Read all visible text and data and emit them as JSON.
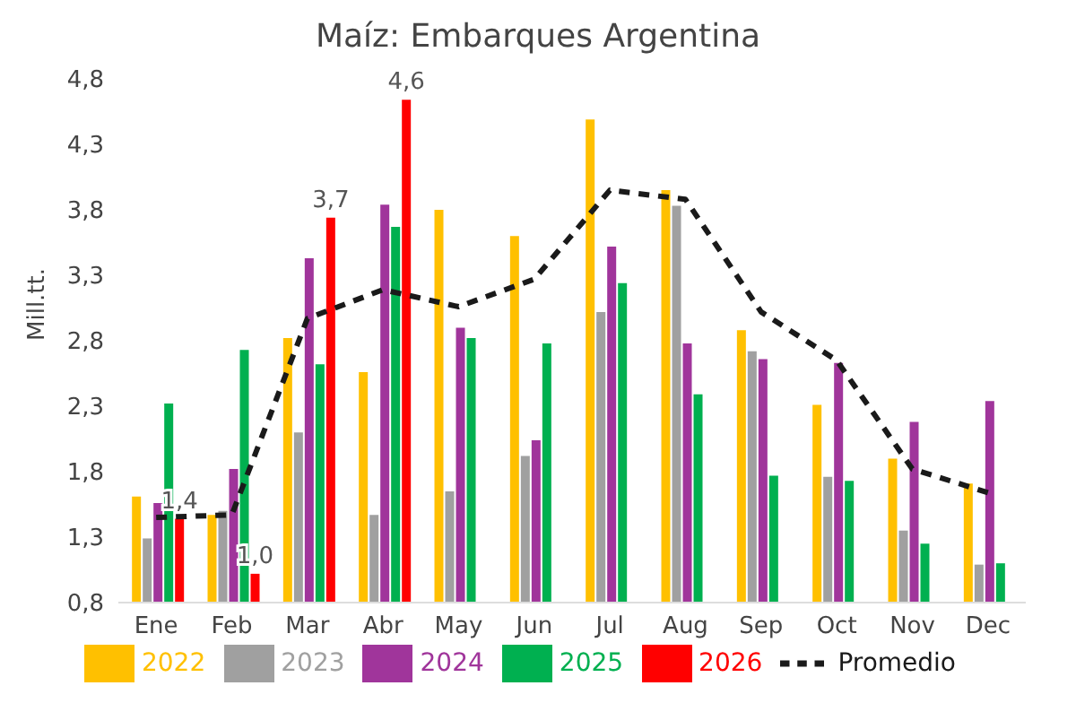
{
  "chart_data": {
    "type": "bar",
    "title": "Maíz: Embarques Argentina",
    "ylabel": "Mill.tt.",
    "categories": [
      "Ene",
      "Feb",
      "Mar",
      "Abr",
      "May",
      "Jun",
      "Jul",
      "Aug",
      "Sep",
      "Oct",
      "Nov",
      "Dec"
    ],
    "series": [
      {
        "name": "2022",
        "color": "#ffc000",
        "values": [
          1.61,
          1.47,
          2.82,
          2.56,
          3.8,
          3.6,
          4.49,
          3.95,
          2.88,
          2.31,
          1.9,
          1.71
        ]
      },
      {
        "name": "2023",
        "color": "#a0a0a0",
        "values": [
          1.29,
          1.5,
          2.1,
          1.47,
          1.65,
          1.92,
          3.02,
          3.83,
          2.72,
          1.76,
          1.35,
          1.09
        ]
      },
      {
        "name": "2024",
        "color": "#a0359b",
        "values": [
          1.56,
          1.82,
          3.43,
          3.84,
          2.9,
          2.04,
          3.52,
          2.78,
          2.66,
          2.63,
          2.18,
          2.34
        ]
      },
      {
        "name": "2025",
        "color": "#00b050",
        "values": [
          2.32,
          2.73,
          2.62,
          3.67,
          2.82,
          2.78,
          3.24,
          2.39,
          1.77,
          1.73,
          1.25,
          1.1
        ]
      },
      {
        "name": "2026",
        "color": "#ff0000",
        "values": [
          1.44,
          1.02,
          3.74,
          4.64,
          null,
          null,
          null,
          null,
          null,
          null,
          null,
          null
        ],
        "value_labels": [
          "1,4",
          "1,0",
          "3,7",
          "4,6",
          null,
          null,
          null,
          null,
          null,
          null,
          null,
          null
        ]
      },
      {
        "name": "Promedio",
        "type": "line",
        "color": "#1a1a1a",
        "line_style": "dashed",
        "marker": "none",
        "values": [
          1.45,
          1.47,
          2.97,
          3.19,
          3.06,
          3.27,
          3.95,
          3.88,
          3.02,
          2.65,
          1.82,
          1.64
        ]
      }
    ],
    "ylim": [
      0.8,
      4.8
    ],
    "yticks": [
      {
        "value": 0.8,
        "label": "0,8"
      },
      {
        "value": 1.3,
        "label": "1,3"
      },
      {
        "value": 1.8,
        "label": "1,8"
      },
      {
        "value": 2.3,
        "label": "2,3"
      },
      {
        "value": 2.8,
        "label": "2,8"
      },
      {
        "value": 3.3,
        "label": "3,3"
      },
      {
        "value": 3.8,
        "label": "3,8"
      },
      {
        "value": 4.3,
        "label": "4,3"
      },
      {
        "value": 4.8,
        "label": "4,8"
      }
    ],
    "legend": "bottom"
  }
}
